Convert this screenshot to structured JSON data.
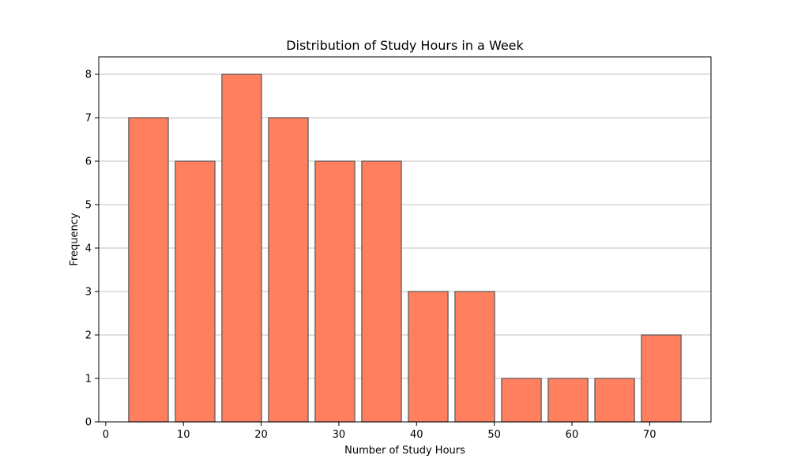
{
  "chart_data": {
    "type": "bar",
    "title": "Distribution of Study Hours in a Week",
    "xlabel": "Number of Study Hours",
    "ylabel": "Frequency",
    "bin_edges": [
      2.5,
      8.5,
      14.5,
      20.5,
      26.5,
      32.5,
      38.5,
      44.5,
      50.5,
      56.5,
      62.5,
      68.5,
      74.5
    ],
    "values": [
      7,
      6,
      8,
      7,
      6,
      6,
      3,
      3,
      1,
      1,
      1,
      2
    ],
    "xlim": [
      -0.9,
      77.9
    ],
    "ylim": [
      0,
      8.4
    ],
    "xticks": [
      0,
      10,
      20,
      30,
      40,
      50,
      60,
      70
    ],
    "yticks": [
      0,
      1,
      2,
      3,
      4,
      5,
      6,
      7,
      8
    ],
    "grid": "y-axis major gridlines",
    "colors": {
      "bar_fill": "#ff7f5f",
      "bar_edge": "#555555",
      "grid": "#c0c0c0",
      "axes": "#000000"
    }
  }
}
